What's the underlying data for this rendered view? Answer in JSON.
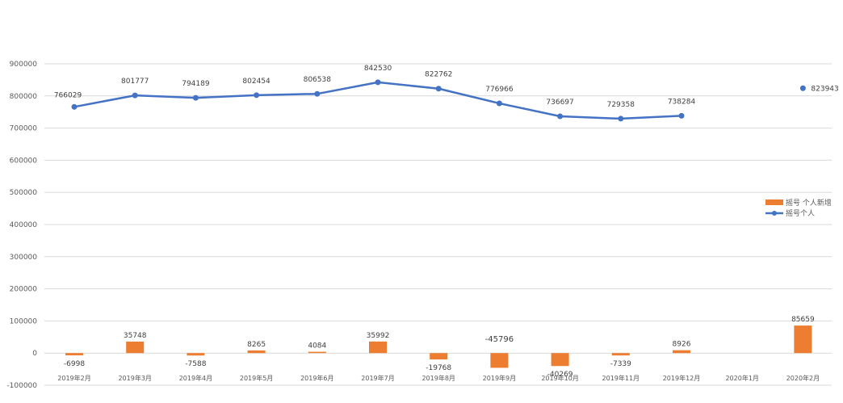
{
  "chart_data": {
    "type": "bar+line",
    "categories": [
      "2019年2月",
      "2019年3月",
      "2019年4月",
      "2019年5月",
      "2019年6月",
      "2019年7月",
      "2019年8月",
      "2019年9月",
      "2019年10月",
      "2019年11月",
      "2019年12月",
      "2020年1月",
      "2020年2月"
    ],
    "series": [
      {
        "name": "摇号 个人新增",
        "type": "bar",
        "color": "#ED7D31",
        "values": [
          -6998,
          35748,
          -7588,
          8265,
          4084,
          35992,
          -19768,
          -45796,
          -40269,
          -7339,
          8926,
          null,
          85659
        ],
        "labels": [
          "-6998",
          "35748",
          "-7588",
          "8265",
          "4084",
          "35992",
          "-19768",
          "-45796",
          "-40269",
          "-7339",
          "8926",
          "",
          "85659"
        ]
      },
      {
        "name": "摇号个人",
        "type": "line",
        "color": "#4472C4",
        "values": [
          766029,
          801777,
          794189,
          802454,
          806538,
          842530,
          822762,
          776966,
          736697,
          729358,
          738284,
          null,
          823943
        ],
        "labels": [
          "766029",
          "801777",
          "794189",
          "802454",
          "806538",
          "842530",
          "822762",
          "776966",
          "736697",
          "729358",
          "738284",
          "",
          "823943"
        ]
      }
    ],
    "y_axis": {
      "ylim": [
        -100000,
        900000
      ],
      "ticks": [
        -100000,
        0,
        100000,
        200000,
        300000,
        400000,
        500000,
        600000,
        700000,
        800000,
        900000
      ],
      "tick_labels": [
        "-100000",
        "0",
        "100000",
        "200000",
        "300000",
        "400000",
        "500000",
        "600000",
        "700000",
        "800000",
        "900000"
      ]
    },
    "grid": true,
    "legend_position": "right"
  }
}
